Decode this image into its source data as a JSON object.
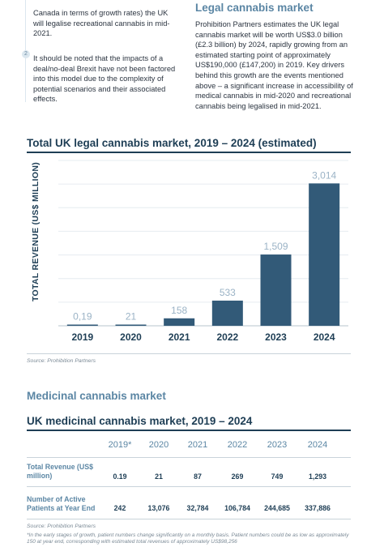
{
  "intro": {
    "left_paragraph_1": "Canada in terms of growth rates) the UK will legalise recreational cannabis in mid-2021.",
    "note_marker": "2",
    "left_paragraph_2": "It should be noted that the impacts of a deal/no-deal Brexit have not been factored into this model due to the complexity of potential scenarios and their associated effects.",
    "right_heading": "Legal cannabis market",
    "right_paragraph": "Prohibition Partners estimates the UK legal cannabis market will be worth US$3.0 billion (£2.3 billion) by 2024, rapidly growing from an estimated starting point of approximately US$190,000 (£147,200) in 2019. Key drivers behind this growth are the events mentioned above – a significant increase in accessibility of medical cannabis in mid-2020 and recreational cannabis being legalised in mid-2021."
  },
  "chart_data": {
    "type": "bar",
    "title": "Total UK legal cannabis market, 2019 – 2024 (estimated)",
    "ylabel": "TOTAL REVENUE (US$ MILLION)",
    "xlabel": "",
    "categories": [
      "2019",
      "2020",
      "2021",
      "2022",
      "2023",
      "2024"
    ],
    "values": [
      0.19,
      21,
      158,
      533,
      1509,
      3014
    ],
    "value_labels": [
      "0,19",
      "21",
      "158",
      "533",
      "1,509",
      "3,014"
    ],
    "ylim": [
      0,
      3500
    ],
    "grid": true,
    "source": "Source: Prohibition Partners",
    "colors": {
      "bar": "#325a78",
      "label": "#9bb3c6",
      "gridline": "#e6ecf0"
    }
  },
  "medicinal": {
    "section_heading": "Medicinal cannabis market",
    "table_title": "UK medicinal cannabis market, 2019 – 2024",
    "headers": [
      "2019*",
      "2020",
      "2021",
      "2022",
      "2023",
      "2024"
    ],
    "rows": [
      {
        "label": "Total Revenue (US$ million)",
        "values": [
          "0.19",
          "21",
          "87",
          "269",
          "749",
          "1,293"
        ]
      },
      {
        "label": "Number of Active Patients at Year End",
        "values": [
          "242",
          "13,076",
          "32,784",
          "106,784",
          "244,685",
          "337,886"
        ]
      }
    ],
    "source": "Source: Prohibition Partners",
    "footnote": "*In the early stages of growth, patient numbers change significantly on a monthly basis. Patient numbers could be as low as approximately 150 at year end, corresponding with estimated total revenues of approximately US$98,256"
  }
}
